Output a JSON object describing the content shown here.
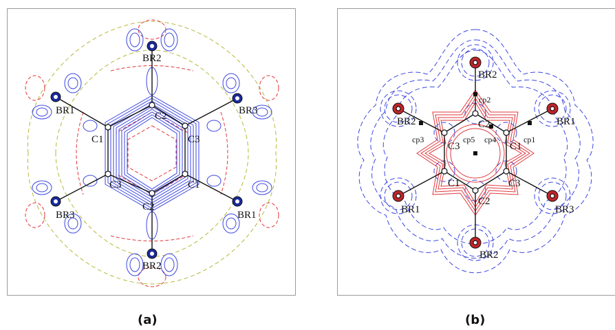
{
  "colors": {
    "positive_contour": "#3b46e0",
    "negative_contour": "#e0363b",
    "zero_contour": "#b7b83a",
    "bond": "#111111",
    "frame": "#9a9a9a"
  },
  "panel_a": {
    "caption": "(a)",
    "atoms": {
      "c1_top": "C1",
      "c2_top": "C2",
      "c3_top": "C3",
      "c3_bottom": "C3",
      "c2_bottom": "C2",
      "c1_bottom": "C1",
      "br2_top": "BR2",
      "br1_left": "BR1",
      "br3_right": "BR3",
      "br3_left": "BR3",
      "br1_right": "BR1",
      "br2_bottom": "BR2"
    }
  },
  "panel_b": {
    "caption": "(b)",
    "atoms": {
      "br2_top": "BR2",
      "br2_left": "BR2",
      "br1_right": "BR1",
      "br1_left": "BR1",
      "br3_right": "BR3",
      "br2_bottom": "BR2",
      "c2_top": "C2",
      "c3_top": "C3",
      "c1_top": "C1",
      "c1_bottom": "C1",
      "c2_bottom": "C2",
      "c3_bottom": "C3"
    },
    "critical_points": {
      "cp2": "cp2",
      "cp3": "cp3",
      "cp5": "cp5",
      "cp4": "cp4",
      "cp1": "cp1"
    }
  }
}
